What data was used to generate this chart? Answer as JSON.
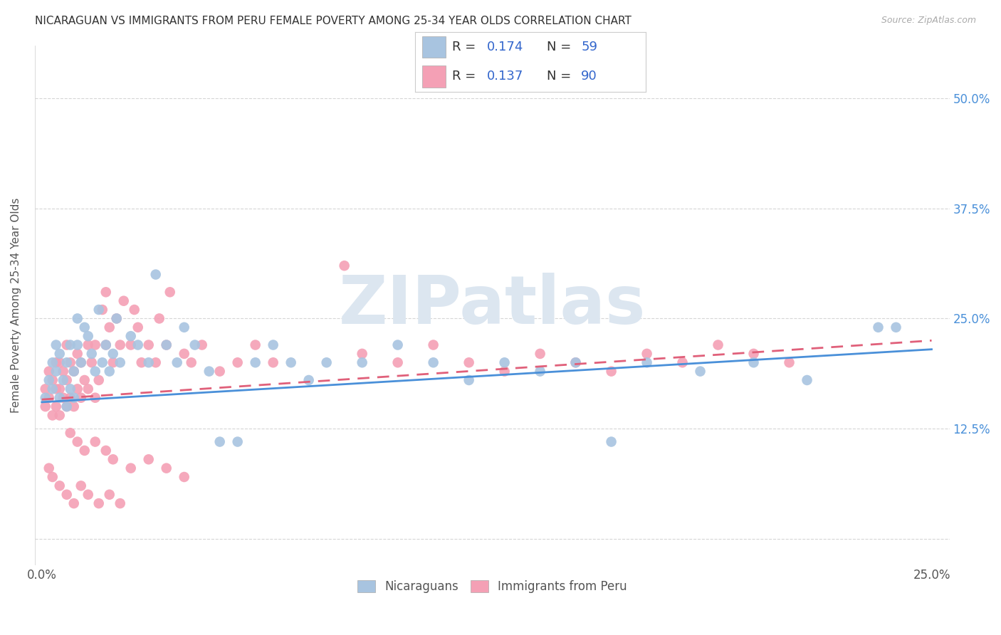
{
  "title": "NICARAGUAN VS IMMIGRANTS FROM PERU FEMALE POVERTY AMONG 25-34 YEAR OLDS CORRELATION CHART",
  "source": "Source: ZipAtlas.com",
  "ylabel": "Female Poverty Among 25-34 Year Olds",
  "xlim": [
    -0.002,
    0.255
  ],
  "ylim": [
    -0.03,
    0.56
  ],
  "xtick_positions": [
    0.0,
    0.05,
    0.1,
    0.15,
    0.2,
    0.25
  ],
  "xticklabels": [
    "0.0%",
    "",
    "",
    "",
    "",
    "25.0%"
  ],
  "ytick_positions": [
    0.0,
    0.125,
    0.25,
    0.375,
    0.5
  ],
  "ytick_labels_right": [
    "",
    "12.5%",
    "25.0%",
    "37.5%",
    "50.0%"
  ],
  "R_nicaraguan": 0.174,
  "N_nicaraguan": 59,
  "R_peru": 0.137,
  "N_peru": 90,
  "color_nicaraguan": "#a8c4e0",
  "color_peru": "#f4a0b5",
  "line_color_nicaraguan": "#4a90d9",
  "line_color_peru": "#e0607a",
  "background_color": "#ffffff",
  "grid_color": "#cccccc",
  "title_color": "#333333",
  "source_color": "#aaaaaa",
  "watermark": "ZIPatlas",
  "watermark_color": "#dce6f0",
  "legend_R_label_color": "#333333",
  "legend_RN_value_color": "#3366cc",
  "nic_line_y0": 0.155,
  "nic_line_y1": 0.215,
  "peru_line_y0": 0.158,
  "peru_line_y1": 0.225,
  "nicaraguan_x": [
    0.001,
    0.002,
    0.003,
    0.003,
    0.004,
    0.004,
    0.005,
    0.005,
    0.006,
    0.007,
    0.007,
    0.008,
    0.008,
    0.009,
    0.009,
    0.01,
    0.01,
    0.011,
    0.012,
    0.013,
    0.014,
    0.015,
    0.016,
    0.017,
    0.018,
    0.019,
    0.02,
    0.021,
    0.022,
    0.025,
    0.027,
    0.03,
    0.032,
    0.035,
    0.038,
    0.04,
    0.043,
    0.047,
    0.05,
    0.055,
    0.06,
    0.065,
    0.07,
    0.075,
    0.08,
    0.09,
    0.1,
    0.11,
    0.12,
    0.13,
    0.14,
    0.15,
    0.16,
    0.17,
    0.185,
    0.2,
    0.215,
    0.235,
    0.24
  ],
  "nicaraguan_y": [
    0.16,
    0.18,
    0.17,
    0.2,
    0.22,
    0.19,
    0.16,
    0.21,
    0.18,
    0.15,
    0.2,
    0.17,
    0.22,
    0.19,
    0.16,
    0.22,
    0.25,
    0.2,
    0.24,
    0.23,
    0.21,
    0.19,
    0.26,
    0.2,
    0.22,
    0.19,
    0.21,
    0.25,
    0.2,
    0.23,
    0.22,
    0.2,
    0.3,
    0.22,
    0.2,
    0.24,
    0.22,
    0.19,
    0.11,
    0.11,
    0.2,
    0.22,
    0.2,
    0.18,
    0.2,
    0.2,
    0.22,
    0.2,
    0.18,
    0.2,
    0.19,
    0.2,
    0.11,
    0.2,
    0.19,
    0.2,
    0.18,
    0.24,
    0.24
  ],
  "peru_x": [
    0.001,
    0.001,
    0.002,
    0.002,
    0.003,
    0.003,
    0.004,
    0.004,
    0.004,
    0.005,
    0.005,
    0.005,
    0.006,
    0.006,
    0.007,
    0.007,
    0.007,
    0.008,
    0.008,
    0.009,
    0.009,
    0.01,
    0.01,
    0.011,
    0.011,
    0.012,
    0.013,
    0.013,
    0.014,
    0.015,
    0.015,
    0.016,
    0.017,
    0.018,
    0.018,
    0.019,
    0.02,
    0.021,
    0.022,
    0.023,
    0.025,
    0.026,
    0.027,
    0.028,
    0.03,
    0.032,
    0.033,
    0.035,
    0.036,
    0.04,
    0.042,
    0.045,
    0.05,
    0.055,
    0.06,
    0.065,
    0.085,
    0.09,
    0.1,
    0.11,
    0.12,
    0.13,
    0.14,
    0.15,
    0.16,
    0.17,
    0.18,
    0.19,
    0.2,
    0.21,
    0.008,
    0.01,
    0.012,
    0.015,
    0.018,
    0.02,
    0.025,
    0.03,
    0.035,
    0.04,
    0.002,
    0.003,
    0.005,
    0.007,
    0.009,
    0.011,
    0.013,
    0.016,
    0.019,
    0.022
  ],
  "peru_y": [
    0.15,
    0.17,
    0.16,
    0.19,
    0.14,
    0.18,
    0.15,
    0.17,
    0.2,
    0.14,
    0.17,
    0.2,
    0.16,
    0.19,
    0.15,
    0.18,
    0.22,
    0.16,
    0.2,
    0.15,
    0.19,
    0.17,
    0.21,
    0.16,
    0.2,
    0.18,
    0.22,
    0.17,
    0.2,
    0.16,
    0.22,
    0.18,
    0.26,
    0.22,
    0.28,
    0.24,
    0.2,
    0.25,
    0.22,
    0.27,
    0.22,
    0.26,
    0.24,
    0.2,
    0.22,
    0.2,
    0.25,
    0.22,
    0.28,
    0.21,
    0.2,
    0.22,
    0.19,
    0.2,
    0.22,
    0.2,
    0.31,
    0.21,
    0.2,
    0.22,
    0.2,
    0.19,
    0.21,
    0.2,
    0.19,
    0.21,
    0.2,
    0.22,
    0.21,
    0.2,
    0.12,
    0.11,
    0.1,
    0.11,
    0.1,
    0.09,
    0.08,
    0.09,
    0.08,
    0.07,
    0.08,
    0.07,
    0.06,
    0.05,
    0.04,
    0.06,
    0.05,
    0.04,
    0.05,
    0.04
  ]
}
